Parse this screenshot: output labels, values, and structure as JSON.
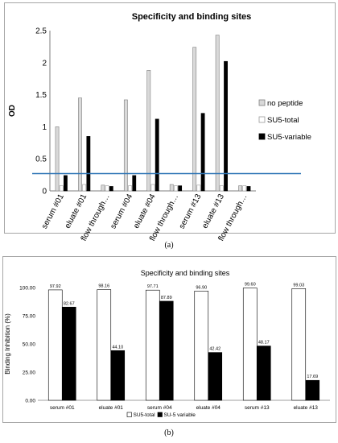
{
  "chart_data": [
    {
      "type": "bar",
      "title": "Specificity and binding sites",
      "xlabel": "",
      "ylabel": "OD",
      "ylim": [
        0,
        2.5
      ],
      "yticks": [
        "0",
        "0.5",
        "1",
        "1.5",
        "2",
        "2.5"
      ],
      "categories": [
        "serum #01",
        "eluate #01",
        "flow through…",
        "serum #04",
        "eluate #04",
        "flow through…",
        "serum #13",
        "eluate #13",
        "flow through…"
      ],
      "series": [
        {
          "name": "no peptide",
          "values": [
            1.0,
            1.45,
            0.09,
            1.42,
            1.88,
            0.1,
            2.24,
            2.43,
            0.08
          ]
        },
        {
          "name": "SU5-total",
          "values": [
            0.08,
            0.1,
            0.08,
            0.08,
            0.1,
            0.08,
            0.09,
            0.08,
            0.08
          ]
        },
        {
          "name": "SU5-variable",
          "values": [
            0.24,
            0.85,
            0.07,
            0.24,
            1.12,
            0.08,
            1.21,
            2.02,
            0.07
          ]
        }
      ],
      "colors": {
        "no peptide": "#d9d9d9",
        "SU5-total": "#ffffff",
        "SU5-variable": "#000000",
        "reference_line": "#2e75b6"
      },
      "reference_line": 0.27,
      "legend_position": "right",
      "grid": false,
      "caption": "(a)"
    },
    {
      "type": "bar",
      "title": "Specificity and binding sites",
      "xlabel": "",
      "ylabel": "Binding Inhibition (%)",
      "ylim": [
        0,
        100
      ],
      "yticks": [
        "0.00",
        "25.00",
        "50.00",
        "75.00",
        "100.00"
      ],
      "categories": [
        "serum #01",
        "eluate #01",
        "serum #04",
        "eluate #04",
        "serum #13",
        "eluate #13"
      ],
      "series": [
        {
          "name": "SU5-total",
          "values": [
            97.92,
            98.16,
            97.71,
            96.9,
            99.6,
            99.03
          ],
          "labels": [
            "97.92",
            "98.16",
            "97.71",
            "96.90",
            "99.60",
            "99.03"
          ]
        },
        {
          "name": "SU-5 variable",
          "values": [
            82.67,
            44.1,
            87.89,
            42.42,
            48.17,
            17.69
          ],
          "labels": [
            "82.67",
            "44.10",
            "87.89",
            "42.42",
            "48.17",
            "17.69"
          ]
        }
      ],
      "colors": {
        "SU5-total": "#ffffff",
        "SU-5 variable": "#000000"
      },
      "legend_position": "bottom",
      "grid": false,
      "caption": "(b)"
    }
  ]
}
